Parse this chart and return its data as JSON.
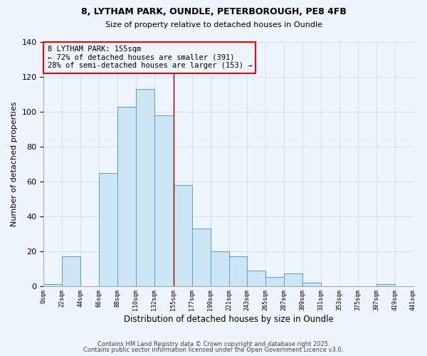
{
  "title1": "8, LYTHAM PARK, OUNDLE, PETERBOROUGH, PE8 4FB",
  "title2": "Size of property relative to detached houses in Oundle",
  "xlabel": "Distribution of detached houses by size in Oundle",
  "ylabel": "Number of detached properties",
  "bin_edges": [
    0,
    22,
    44,
    66,
    88,
    110,
    132,
    155,
    177,
    199,
    221,
    243,
    265,
    287,
    309,
    331,
    353,
    375,
    397,
    419,
    441
  ],
  "bar_heights": [
    1,
    17,
    0,
    65,
    103,
    113,
    98,
    58,
    33,
    20,
    17,
    9,
    5,
    7,
    2,
    0,
    0,
    0,
    1,
    0
  ],
  "bar_color": "#cce5f5",
  "bar_edge_color": "#5b9ec9",
  "property_line_x": 155,
  "ann_line1": "8 LYTHAM PARK: 155sqm",
  "ann_line2": "← 72% of detached houses are smaller (391)",
  "ann_line3": "28% of semi-detached houses are larger (153) →",
  "ylim": [
    0,
    140
  ],
  "xlim": [
    0,
    441
  ],
  "grid_color": "#d0dce8",
  "tick_labels": [
    "0sqm",
    "22sqm",
    "44sqm",
    "66sqm",
    "88sqm",
    "110sqm",
    "132sqm",
    "155sqm",
    "177sqm",
    "199sqm",
    "221sqm",
    "243sqm",
    "265sqm",
    "287sqm",
    "309sqm",
    "331sqm",
    "353sqm",
    "375sqm",
    "397sqm",
    "419sqm",
    "441sqm"
  ],
  "footer1": "Contains HM Land Registry data © Crown copyright and database right 2025.",
  "footer2": "Contains public sector information licensed under the Open Government Licence v3.0.",
  "bg_color": "#eef4fb"
}
